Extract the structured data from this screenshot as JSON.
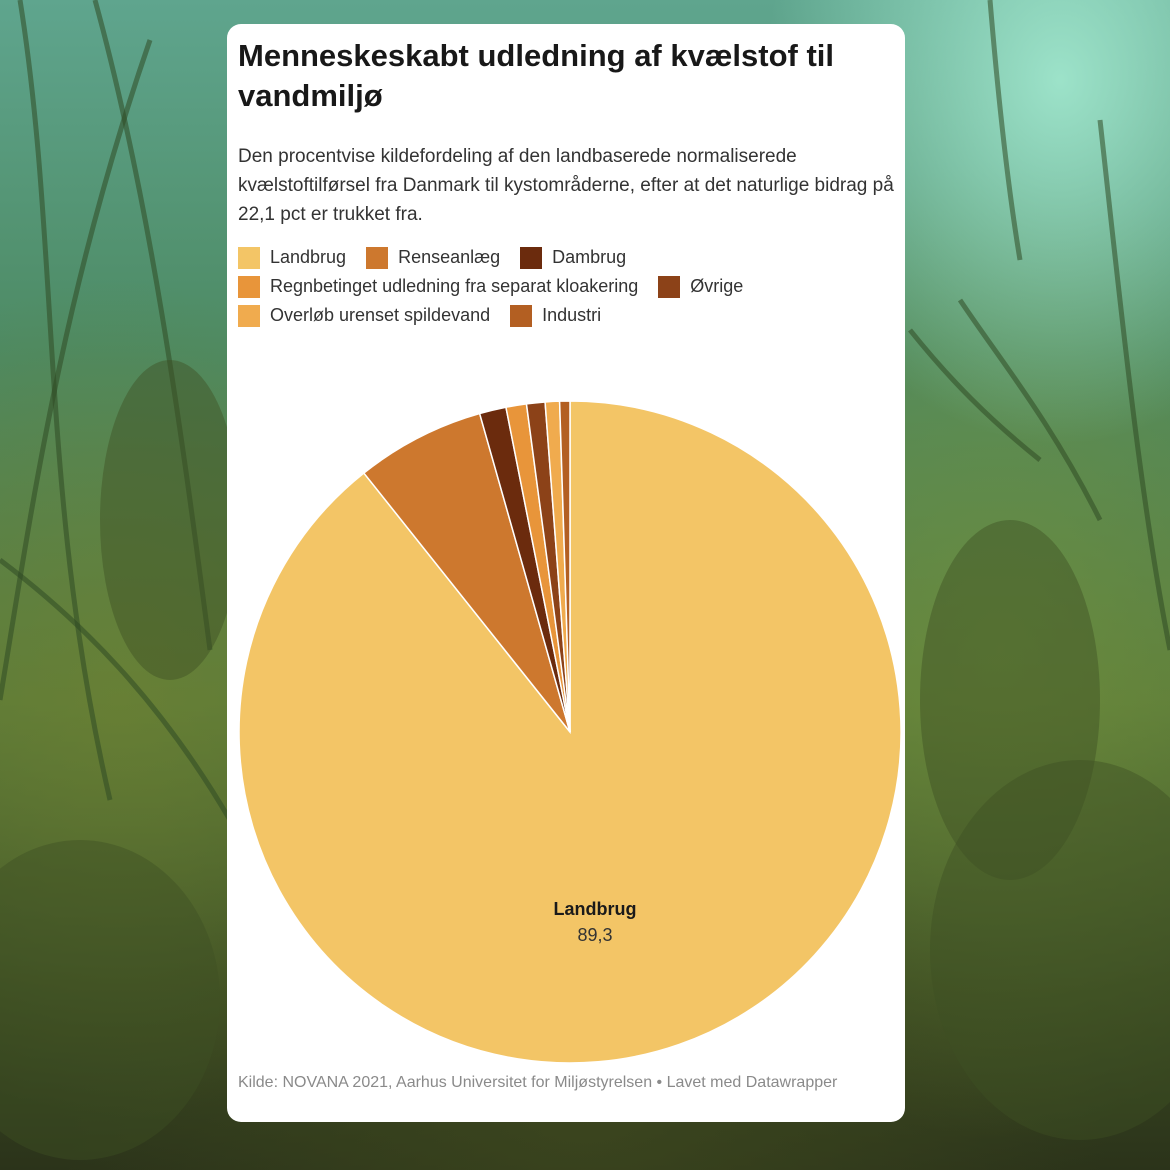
{
  "chart_data": {
    "type": "pie",
    "title": "Menneskeskabt udledning af kvælstof til vandmiljø",
    "subtitle": "Den procentvise kildefordeling af den landbaserede normaliserede kvælstoftilførsel fra Danmark til kystområderne, efter at det naturlige bidrag på 22,1 pct er trukket fra.",
    "slices": [
      {
        "label": "Landbrug",
        "value": 89.3,
        "color": "#f3c566",
        "value_label": "89,3"
      },
      {
        "label": "Renseanlæg",
        "value": 6.3,
        "color": "#cd782e"
      },
      {
        "label": "Dambrug",
        "value": 1.3,
        "color": "#6b2b0d"
      },
      {
        "label": "Regnbetinget udledning fra separat kloakering",
        "value": 1.0,
        "color": "#e8953a"
      },
      {
        "label": "Øvrige",
        "value": 0.9,
        "color": "#8c4218"
      },
      {
        "label": "Overløb urenset spildevand",
        "value": 0.7,
        "color": "#f0ab4e"
      },
      {
        "label": "Industri",
        "value": 0.5,
        "color": "#b35f22"
      }
    ],
    "legend_rows": [
      [
        0,
        1,
        2
      ],
      [
        3,
        4
      ],
      [
        5,
        6
      ]
    ],
    "source": "Kilde: NOVANA 2021, Aarhus Universitet for Miljøstyrelsen  • Lavet med Datawrapper"
  }
}
